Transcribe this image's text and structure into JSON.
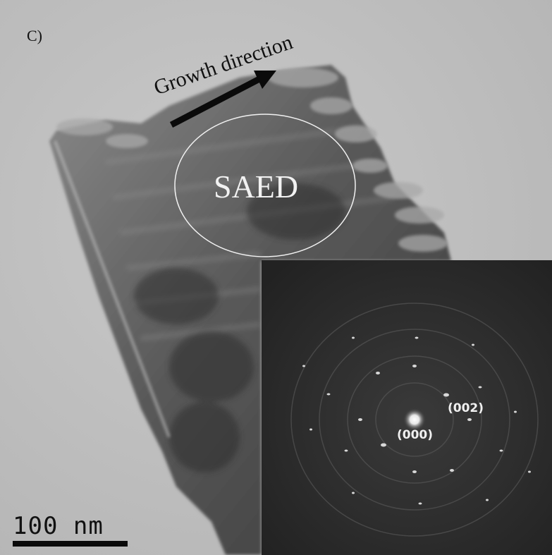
{
  "figure": {
    "panel_label": "C)",
    "growth_label": "Growth direction",
    "saed_label": "SAED",
    "diffraction": {
      "spot_002": "(002)",
      "spot_000": "(000)"
    },
    "scale_bar": {
      "label": "100 nm"
    }
  }
}
